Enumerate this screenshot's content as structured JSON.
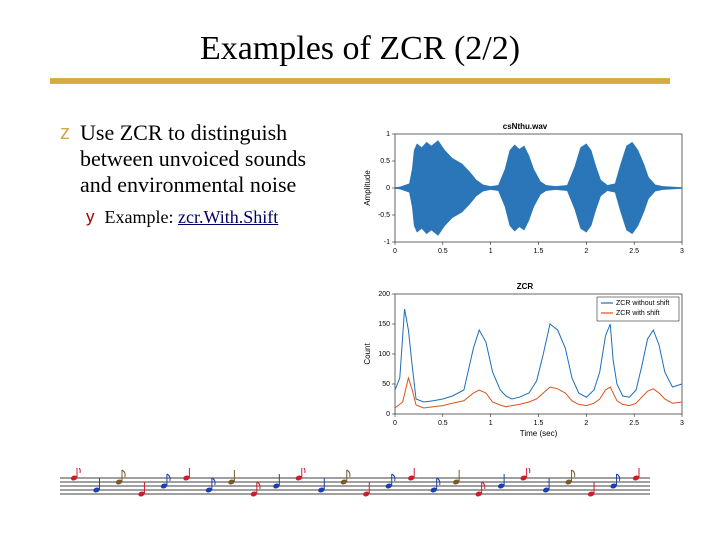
{
  "title": "Examples of ZCR (2/2)",
  "title_underline": {
    "fill": "#d9b24d",
    "stroke": "#b8912e",
    "hatch": "#c89a35"
  },
  "bullets": {
    "z": {
      "marker": "z",
      "marker_color": "#d4a84b",
      "text": "Use ZCR to distinguish between unvoiced sounds and environmental noise",
      "fontsize": 22
    },
    "y": {
      "marker": "y",
      "marker_color": "#a00000",
      "text_plain": "Example: ",
      "text_link": "zcr.With.Shift",
      "fontsize": 18
    }
  },
  "chart_wave": {
    "type": "line",
    "title": "csNthu.wav",
    "title_fontsize": 8,
    "ylabel": "Amplitude",
    "label_fontsize": 8,
    "xlim": [
      0,
      3
    ],
    "ylim": [
      -1,
      1
    ],
    "xticks": [
      0,
      0.5,
      1,
      1.5,
      2,
      2.5,
      3
    ],
    "yticks": [
      -1,
      -0.5,
      0,
      0.5,
      1
    ],
    "tick_fontsize": 7,
    "series_color": "#1f6fb4",
    "background": "#ffffff",
    "box_color": "#000000",
    "envelope": [
      [
        0.0,
        0.01
      ],
      [
        0.05,
        0.02
      ],
      [
        0.1,
        0.05
      ],
      [
        0.15,
        0.08
      ],
      [
        0.18,
        0.35
      ],
      [
        0.2,
        0.7
      ],
      [
        0.23,
        0.82
      ],
      [
        0.28,
        0.75
      ],
      [
        0.33,
        0.85
      ],
      [
        0.38,
        0.78
      ],
      [
        0.45,
        0.88
      ],
      [
        0.52,
        0.7
      ],
      [
        0.6,
        0.55
      ],
      [
        0.7,
        0.45
      ],
      [
        0.78,
        0.3
      ],
      [
        0.85,
        0.15
      ],
      [
        0.92,
        0.06
      ],
      [
        1.0,
        0.03
      ],
      [
        1.08,
        0.05
      ],
      [
        1.15,
        0.35
      ],
      [
        1.2,
        0.7
      ],
      [
        1.25,
        0.8
      ],
      [
        1.3,
        0.72
      ],
      [
        1.35,
        0.78
      ],
      [
        1.4,
        0.6
      ],
      [
        1.45,
        0.35
      ],
      [
        1.52,
        0.12
      ],
      [
        1.58,
        0.05
      ],
      [
        1.68,
        0.03
      ],
      [
        1.8,
        0.05
      ],
      [
        1.88,
        0.4
      ],
      [
        1.94,
        0.75
      ],
      [
        2.0,
        0.82
      ],
      [
        2.05,
        0.7
      ],
      [
        2.1,
        0.4
      ],
      [
        2.15,
        0.15
      ],
      [
        2.22,
        0.05
      ],
      [
        2.3,
        0.08
      ],
      [
        2.36,
        0.45
      ],
      [
        2.42,
        0.78
      ],
      [
        2.48,
        0.85
      ],
      [
        2.54,
        0.7
      ],
      [
        2.6,
        0.45
      ],
      [
        2.65,
        0.2
      ],
      [
        2.72,
        0.06
      ],
      [
        2.8,
        0.03
      ],
      [
        2.9,
        0.02
      ],
      [
        3.0,
        0.01
      ]
    ]
  },
  "chart_zcr": {
    "type": "line",
    "title": "ZCR",
    "title_fontsize": 8,
    "ylabel": "Count",
    "xlabel": "Time (sec)",
    "label_fontsize": 8,
    "xlim": [
      0,
      3
    ],
    "ylim": [
      0,
      200
    ],
    "xticks": [
      0,
      0.5,
      1,
      1.5,
      2,
      2.5,
      3
    ],
    "yticks": [
      0,
      50,
      100,
      150,
      200
    ],
    "tick_fontsize": 7,
    "background": "#ffffff",
    "box_color": "#000000",
    "legend": {
      "position": "top-right",
      "fontsize": 7,
      "items": [
        {
          "label": "ZCR without shift",
          "color": "#1f6fb4"
        },
        {
          "label": "ZCR with shift",
          "color": "#d95319"
        }
      ]
    },
    "series": [
      {
        "color": "#1f6fb4",
        "points": [
          [
            0.0,
            40
          ],
          [
            0.05,
            60
          ],
          [
            0.1,
            175
          ],
          [
            0.14,
            140
          ],
          [
            0.18,
            80
          ],
          [
            0.22,
            25
          ],
          [
            0.3,
            20
          ],
          [
            0.4,
            22
          ],
          [
            0.5,
            25
          ],
          [
            0.6,
            30
          ],
          [
            0.72,
            40
          ],
          [
            0.82,
            110
          ],
          [
            0.88,
            140
          ],
          [
            0.95,
            120
          ],
          [
            1.02,
            70
          ],
          [
            1.1,
            40
          ],
          [
            1.16,
            30
          ],
          [
            1.22,
            25
          ],
          [
            1.3,
            28
          ],
          [
            1.4,
            35
          ],
          [
            1.48,
            55
          ],
          [
            1.55,
            100
          ],
          [
            1.62,
            150
          ],
          [
            1.7,
            140
          ],
          [
            1.78,
            110
          ],
          [
            1.85,
            60
          ],
          [
            1.92,
            35
          ],
          [
            2.0,
            28
          ],
          [
            2.08,
            40
          ],
          [
            2.14,
            70
          ],
          [
            2.2,
            130
          ],
          [
            2.25,
            150
          ],
          [
            2.28,
            90
          ],
          [
            2.32,
            50
          ],
          [
            2.38,
            30
          ],
          [
            2.45,
            28
          ],
          [
            2.52,
            40
          ],
          [
            2.58,
            80
          ],
          [
            2.64,
            125
          ],
          [
            2.7,
            140
          ],
          [
            2.76,
            115
          ],
          [
            2.82,
            70
          ],
          [
            2.9,
            45
          ],
          [
            3.0,
            50
          ]
        ]
      },
      {
        "color": "#d95319",
        "points": [
          [
            0.0,
            10
          ],
          [
            0.08,
            20
          ],
          [
            0.14,
            60
          ],
          [
            0.18,
            40
          ],
          [
            0.22,
            15
          ],
          [
            0.3,
            10
          ],
          [
            0.4,
            12
          ],
          [
            0.5,
            14
          ],
          [
            0.6,
            18
          ],
          [
            0.72,
            22
          ],
          [
            0.82,
            35
          ],
          [
            0.88,
            40
          ],
          [
            0.95,
            35
          ],
          [
            1.02,
            20
          ],
          [
            1.1,
            15
          ],
          [
            1.16,
            12
          ],
          [
            1.22,
            14
          ],
          [
            1.3,
            16
          ],
          [
            1.4,
            20
          ],
          [
            1.48,
            25
          ],
          [
            1.55,
            35
          ],
          [
            1.62,
            45
          ],
          [
            1.7,
            42
          ],
          [
            1.78,
            35
          ],
          [
            1.85,
            22
          ],
          [
            1.92,
            16
          ],
          [
            2.0,
            14
          ],
          [
            2.08,
            18
          ],
          [
            2.14,
            25
          ],
          [
            2.2,
            40
          ],
          [
            2.25,
            45
          ],
          [
            2.28,
            35
          ],
          [
            2.32,
            22
          ],
          [
            2.38,
            16
          ],
          [
            2.45,
            14
          ],
          [
            2.52,
            18
          ],
          [
            2.58,
            28
          ],
          [
            2.64,
            38
          ],
          [
            2.7,
            42
          ],
          [
            2.76,
            35
          ],
          [
            2.82,
            25
          ],
          [
            2.9,
            18
          ],
          [
            3.0,
            20
          ]
        ]
      }
    ]
  },
  "music_bar": {
    "staff_color": "#000000",
    "note_colors": [
      "#d01c2a",
      "#1a3fb0",
      "#7a5a2a",
      "#d01c2a",
      "#1a3fb0"
    ],
    "note_count": 26
  }
}
